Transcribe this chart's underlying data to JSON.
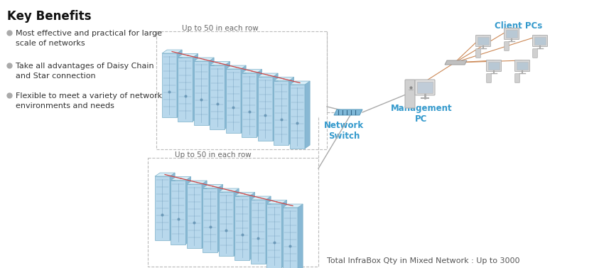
{
  "background_color": "#ffffff",
  "key_benefits_title": "Key Benefits",
  "key_benefits_bullets": [
    "Most effective and practical for large\nscale of networks",
    "Take all advantages of Daisy Chain\nand Star connection",
    "Flexible to meet a variety of network\nenvironments and needs"
  ],
  "label_row1": "Up to 50 in each row",
  "label_row2": "Up to 50 in each row",
  "label_switch": "Network\nSwitch",
  "label_mgmt": "Management\nPC",
  "label_clients": "Client PCs",
  "label_total": "Total InfraBox Qty in Mixed Network : Up to 3000",
  "text_color_label": "#3399cc",
  "text_color_dark": "#333333",
  "text_color_black": "#111111",
  "num_racks_row1": 9,
  "num_racks_row2": 9,
  "rack_face": "#b8d8ec",
  "rack_top": "#d8eef8",
  "rack_side": "#88b8d4",
  "rack_edge": "#7aafc8",
  "rack_detail": "#6090b0",
  "line_dashed": "#bbbbbb",
  "line_red": "#cc4444",
  "line_connect": "#aaaaaa",
  "line_orange": "#cc8855"
}
